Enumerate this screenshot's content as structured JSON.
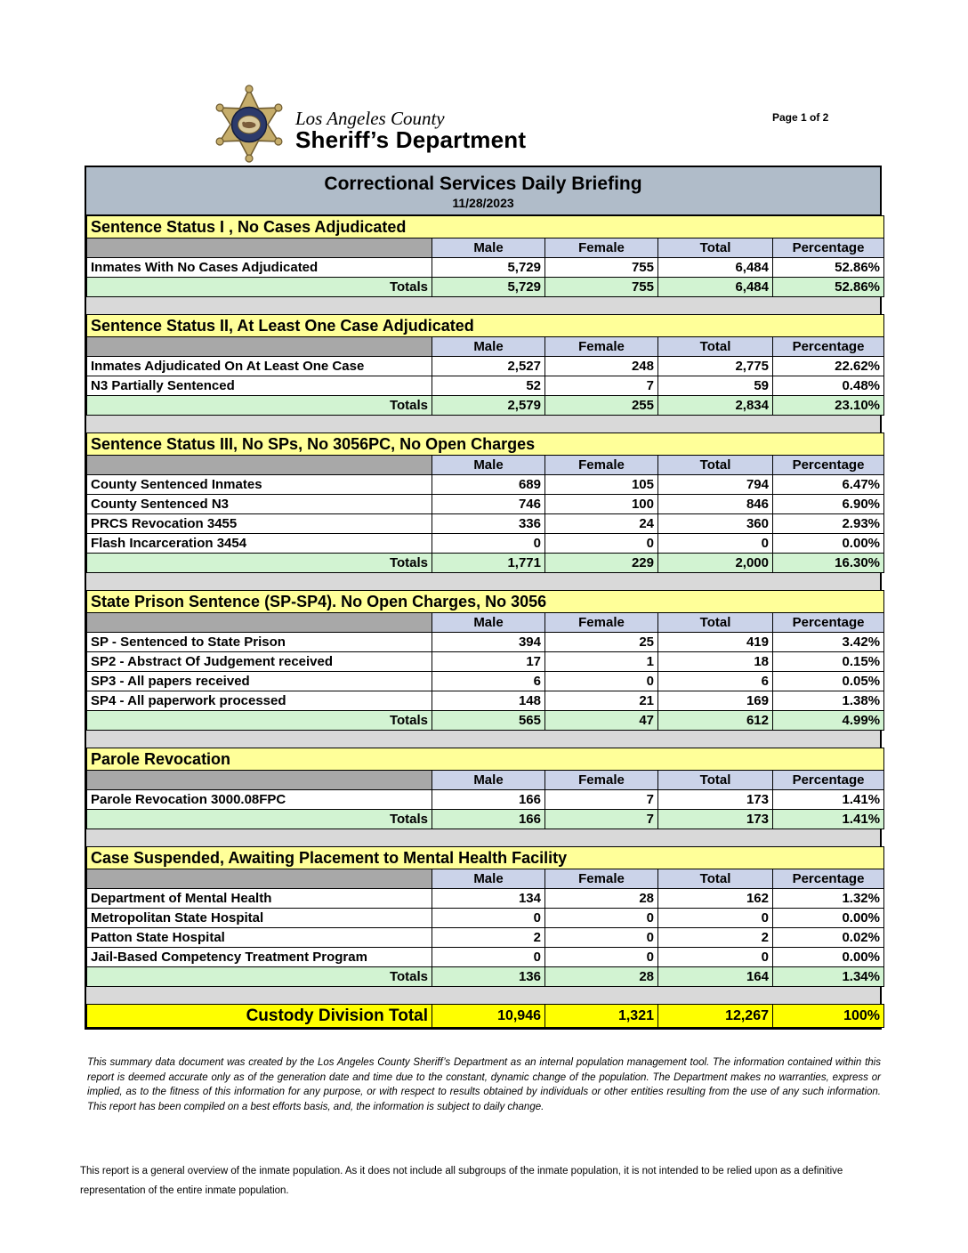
{
  "page": {
    "page_label": "Page 1 of 2"
  },
  "logo": {
    "county": "Los Angeles County",
    "department": "Sheriff’s Department"
  },
  "title": {
    "heading": "Correctional Services Daily Briefing",
    "date": "11/28/2023"
  },
  "columns": [
    "Male",
    "Female",
    "Total",
    "Percentage"
  ],
  "sections": [
    {
      "title": "Sentence Status I , No Cases Adjudicated",
      "rows": [
        {
          "label": "Inmates With No Cases Adjudicated",
          "male": "5,729",
          "female": "755",
          "total": "6,484",
          "percentage": "52.86%"
        }
      ],
      "totals": {
        "label": "Totals",
        "male": "5,729",
        "female": "755",
        "total": "6,484",
        "percentage": "52.86%"
      }
    },
    {
      "title": "Sentence Status II, At Least One Case Adjudicated",
      "rows": [
        {
          "label": "Inmates Adjudicated On At Least One Case",
          "male": "2,527",
          "female": "248",
          "total": "2,775",
          "percentage": "22.62%"
        },
        {
          "label": "N3 Partially Sentenced",
          "male": "52",
          "female": "7",
          "total": "59",
          "percentage": "0.48%"
        }
      ],
      "totals": {
        "label": "Totals",
        "male": "2,579",
        "female": "255",
        "total": "2,834",
        "percentage": "23.10%"
      }
    },
    {
      "title": "Sentence Status III, No SPs, No 3056PC, No Open Charges",
      "rows": [
        {
          "label": "County Sentenced Inmates",
          "male": "689",
          "female": "105",
          "total": "794",
          "percentage": "6.47%"
        },
        {
          "label": "County Sentenced N3",
          "male": "746",
          "female": "100",
          "total": "846",
          "percentage": "6.90%"
        },
        {
          "label": "PRCS Revocation 3455",
          "male": "336",
          "female": "24",
          "total": "360",
          "percentage": "2.93%"
        },
        {
          "label": "Flash Incarceration 3454",
          "male": "0",
          "female": "0",
          "total": "0",
          "percentage": "0.00%"
        }
      ],
      "totals": {
        "label": "Totals",
        "male": "1,771",
        "female": "229",
        "total": "2,000",
        "percentage": "16.30%"
      }
    },
    {
      "title": "State Prison Sentence (SP-SP4). No Open Charges, No 3056",
      "rows": [
        {
          "label": "SP - Sentenced to State Prison",
          "male": "394",
          "female": "25",
          "total": "419",
          "percentage": "3.42%"
        },
        {
          "label": "SP2 - Abstract Of Judgement received",
          "male": "17",
          "female": "1",
          "total": "18",
          "percentage": "0.15%"
        },
        {
          "label": "SP3 - All papers received",
          "male": "6",
          "female": "0",
          "total": "6",
          "percentage": "0.05%"
        },
        {
          "label": "SP4 - All paperwork processed",
          "male": "148",
          "female": "21",
          "total": "169",
          "percentage": "1.38%"
        }
      ],
      "totals": {
        "label": "Totals",
        "male": "565",
        "female": "47",
        "total": "612",
        "percentage": "4.99%"
      }
    },
    {
      "title": "Parole Revocation",
      "rows": [
        {
          "label": "Parole Revocation 3000.08FPC",
          "male": "166",
          "female": "7",
          "total": "173",
          "percentage": "1.41%"
        }
      ],
      "totals": {
        "label": "Totals",
        "male": "166",
        "female": "7",
        "total": "173",
        "percentage": "1.41%"
      }
    },
    {
      "title": "Case Suspended, Awaiting Placement to Mental Health Facility",
      "rows": [
        {
          "label": "Department of Mental Health",
          "male": "134",
          "female": "28",
          "total": "162",
          "percentage": "1.32%"
        },
        {
          "label": "Metropolitan State Hospital",
          "male": "0",
          "female": "0",
          "total": "0",
          "percentage": "0.00%"
        },
        {
          "label": "Patton State Hospital",
          "male": "2",
          "female": "0",
          "total": "2",
          "percentage": "0.02%"
        },
        {
          "label": "Jail-Based Competency Treatment Program",
          "male": "0",
          "female": "0",
          "total": "0",
          "percentage": "0.00%"
        }
      ],
      "totals": {
        "label": "Totals",
        "male": "136",
        "female": "28",
        "total": "164",
        "percentage": "1.34%"
      }
    }
  ],
  "grand_total": {
    "label": "Custody Division Total",
    "male": "10,946",
    "female": "1,321",
    "total": "12,267",
    "percentage": "100%"
  },
  "disclaimer": "This summary data document was created by the Los Angeles County Sheriff’s Department as an internal population management tool.  The information contained within this report is deemed accurate only as of the generation date and time due to the constant, dynamic change of the population.  The Department makes no warranties, express or implied, as to the fitness of this information for any purpose, or with respect to results obtained by individuals or other entities resulting from the use of any such information.  This report has been compiled on a best efforts basis, and, the information is subject to daily change.",
  "footnote": "This report is a general overview of the inmate population.  As it does not include all subgroups of the inmate population, it is not intended to be relied upon as a definitive representation of the entire inmate population.",
  "colors": {
    "title_bar": "#b0bcc9",
    "section_header": "#ffff99",
    "column_header": "#cbd3e9",
    "corner_cell": "#a8a8a8",
    "totals_row": "#d2f3d2",
    "grand_total_row": "#ffff00",
    "gap_row": "#d9d9d9",
    "border": "#000000"
  }
}
